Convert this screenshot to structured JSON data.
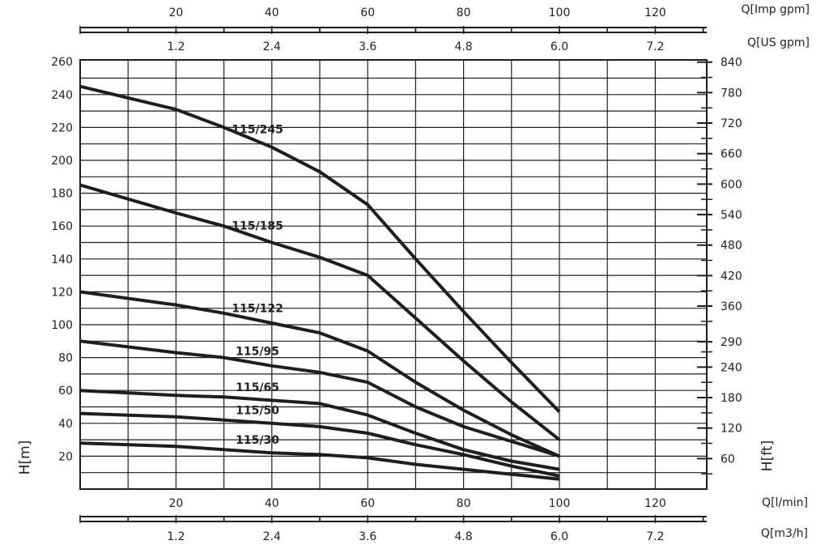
{
  "chart_data": {
    "type": "line",
    "title": "",
    "xlabel": "Q[l/min]",
    "ylabel": "H[m]",
    "y2label": "H[ft]",
    "xlim": [
      0,
      130
    ],
    "ylim": [
      0,
      260
    ],
    "grid": true,
    "legend": "none",
    "colors": {
      "line": "#1e1e1e",
      "grid": "#1e1e1e",
      "text": "#222222"
    },
    "x_ticks": [
      "20",
      "40",
      "60",
      "80",
      "100",
      "120"
    ],
    "y_ticks": [
      "20",
      "40",
      "60",
      "80",
      "100",
      "120",
      "140",
      "160",
      "180",
      "200",
      "220",
      "240",
      "260"
    ],
    "y2_ticks": [
      "60",
      "120",
      "180",
      "240",
      "290",
      "360",
      "420",
      "480",
      "540",
      "600",
      "660",
      "720",
      "780",
      "840"
    ],
    "top_axes": [
      {
        "unit": "Q[Imp gpm]",
        "ticks": [
          "20",
          "40",
          "60",
          "80",
          "100",
          "120"
        ]
      },
      {
        "unit": "Q[US gpm]",
        "ticks": [
          "1.2",
          "2.4",
          "3.6",
          "4.8",
          "6.0",
          "7.2"
        ]
      }
    ],
    "bottom_axes": [
      {
        "unit": "Q[l/min]",
        "ticks": [
          "20",
          "40",
          "60",
          "80",
          "100",
          "120"
        ]
      },
      {
        "unit": "Q[m3/h]",
        "ticks": [
          "1.2",
          "2.4",
          "3.6",
          "4.8",
          "6.0",
          "7.2"
        ]
      }
    ],
    "series": [
      {
        "name": "115/245",
        "x": [
          0,
          20,
          30,
          40,
          50,
          60,
          70,
          80,
          90,
          100
        ],
        "y": [
          245,
          231,
          220,
          208,
          193,
          173,
          140,
          108,
          77,
          47
        ]
      },
      {
        "name": "115/185",
        "x": [
          0,
          20,
          30,
          40,
          50,
          60,
          70,
          80,
          90,
          100
        ],
        "y": [
          185,
          168,
          160,
          150,
          141,
          130,
          104,
          78,
          53,
          30
        ]
      },
      {
        "name": "115/122",
        "x": [
          0,
          20,
          30,
          40,
          50,
          60,
          70,
          80,
          90,
          100
        ],
        "y": [
          120,
          112,
          107,
          101,
          95,
          84,
          65,
          48,
          33,
          20
        ]
      },
      {
        "name": "115/95",
        "x": [
          0,
          20,
          30,
          40,
          50,
          60,
          70,
          80,
          90,
          100
        ],
        "y": [
          90,
          83,
          80,
          75,
          71,
          65,
          50,
          38,
          29,
          20
        ]
      },
      {
        "name": "115/65",
        "x": [
          0,
          20,
          30,
          40,
          50,
          60,
          70,
          80,
          90,
          100
        ],
        "y": [
          60,
          57,
          56,
          54,
          52,
          45,
          34,
          24,
          17,
          12
        ]
      },
      {
        "name": "115/50",
        "x": [
          0,
          20,
          30,
          40,
          50,
          60,
          70,
          80,
          90,
          100
        ],
        "y": [
          46,
          44,
          42,
          40,
          38,
          34,
          27,
          21,
          14,
          8
        ]
      },
      {
        "name": "115/30",
        "x": [
          0,
          20,
          30,
          40,
          50,
          60,
          70,
          80,
          90,
          100
        ],
        "y": [
          28,
          26,
          24,
          22,
          21,
          19,
          15,
          12,
          9,
          6
        ]
      }
    ]
  }
}
